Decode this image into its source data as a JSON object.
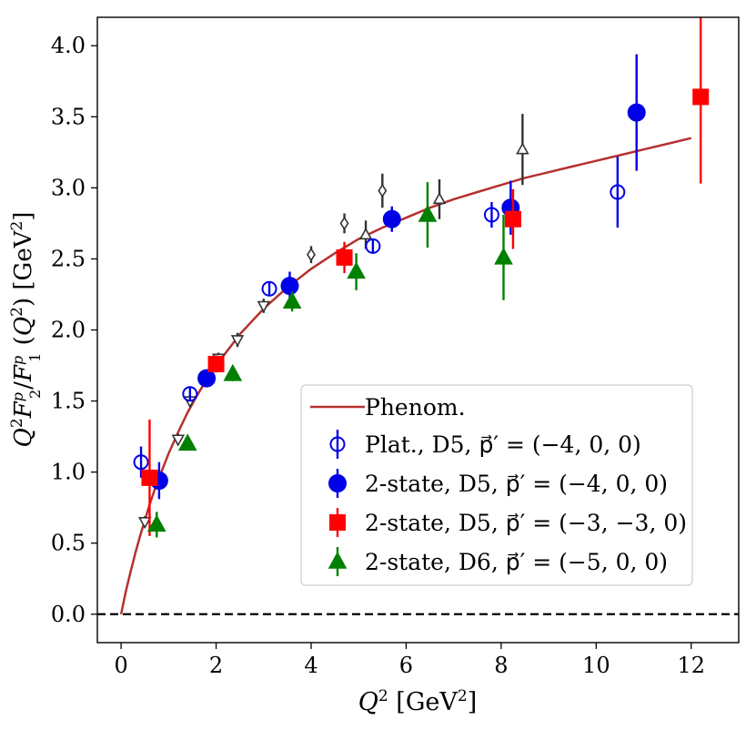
{
  "chart_data": {
    "type": "scatter",
    "xlabel": "Q² [GeV²]",
    "ylabel": "Q²F₂ᵖ/F₁ᵖ (Q²) [GeV²]",
    "xlim": [
      -0.5,
      13.0
    ],
    "ylim": [
      -0.2,
      4.2
    ],
    "xticks": [
      0,
      2,
      4,
      6,
      8,
      10,
      12
    ],
    "yticks": [
      0.0,
      0.5,
      1.0,
      1.5,
      2.0,
      2.5,
      3.0,
      3.5,
      4.0
    ],
    "xtick_labels": [
      "0",
      "2",
      "4",
      "6",
      "8",
      "10",
      "12"
    ],
    "ytick_labels": [
      "0.0",
      "0.5",
      "1.0",
      "1.5",
      "2.0",
      "2.5",
      "3.0",
      "3.5",
      "4.0"
    ],
    "reference_line_y": 0.0,
    "grid": false,
    "legend_position": "bottom-right",
    "curve": {
      "name": "Phenom.",
      "color": "#b5312f",
      "points": [
        [
          0.0,
          0.0
        ],
        [
          0.1,
          0.16
        ],
        [
          0.2,
          0.3
        ],
        [
          0.3,
          0.43
        ],
        [
          0.4,
          0.55
        ],
        [
          0.5,
          0.66
        ],
        [
          0.6,
          0.77
        ],
        [
          0.7,
          0.87
        ],
        [
          0.8,
          0.96
        ],
        [
          1.0,
          1.13
        ],
        [
          1.2,
          1.28
        ],
        [
          1.4,
          1.42
        ],
        [
          1.6,
          1.54
        ],
        [
          1.8,
          1.65
        ],
        [
          2.0,
          1.75
        ],
        [
          2.5,
          1.97
        ],
        [
          3.0,
          2.15
        ],
        [
          3.5,
          2.3
        ],
        [
          4.0,
          2.43
        ],
        [
          4.5,
          2.54
        ],
        [
          5.0,
          2.64
        ],
        [
          5.5,
          2.72
        ],
        [
          6.0,
          2.79
        ],
        [
          6.5,
          2.86
        ],
        [
          7.0,
          2.92
        ],
        [
          7.5,
          2.97
        ],
        [
          8.0,
          3.02
        ],
        [
          8.5,
          3.07
        ],
        [
          9.0,
          3.11
        ],
        [
          9.5,
          3.15
        ],
        [
          10.0,
          3.19
        ],
        [
          10.5,
          3.23
        ],
        [
          11.0,
          3.27
        ],
        [
          11.5,
          3.31
        ],
        [
          12.0,
          3.35
        ]
      ]
    },
    "background_series": [
      {
        "marker": "triangle-down-open",
        "color": "#333333",
        "points": [
          {
            "x": 0.5,
            "y": 0.65,
            "err": 0.04
          },
          {
            "x": 1.2,
            "y": 1.23,
            "err": 0.04
          },
          {
            "x": 1.45,
            "y": 1.5,
            "err": 0.04
          },
          {
            "x": 2.05,
            "y": 1.8,
            "err": 0.04
          },
          {
            "x": 2.45,
            "y": 1.93,
            "err": 0.05
          },
          {
            "x": 3.0,
            "y": 2.17,
            "err": 0.05
          }
        ]
      },
      {
        "marker": "diamond-open",
        "color": "#333333",
        "points": [
          {
            "x": 4.0,
            "y": 2.53,
            "err": 0.06
          },
          {
            "x": 4.7,
            "y": 2.75,
            "err": 0.07
          },
          {
            "x": 5.5,
            "y": 2.98,
            "err": 0.12
          }
        ]
      },
      {
        "marker": "triangle-up-open",
        "color": "#333333",
        "points": [
          {
            "x": 5.15,
            "y": 2.67,
            "err": 0.1
          },
          {
            "x": 6.7,
            "y": 2.92,
            "err": 0.14
          },
          {
            "x": 8.45,
            "y": 3.27,
            "err": 0.25
          }
        ]
      }
    ],
    "series": [
      {
        "name": "Plat., D5, p⃗′ = (−4, 0, 0)",
        "marker": "circle-open",
        "color": "#0000e6",
        "points": [
          {
            "x": 0.42,
            "y": 1.07,
            "err": 0.11
          },
          {
            "x": 1.45,
            "y": 1.55,
            "err": 0.05
          },
          {
            "x": 3.12,
            "y": 2.29,
            "err": 0.05
          },
          {
            "x": 5.3,
            "y": 2.59,
            "err": 0.05
          },
          {
            "x": 7.8,
            "y": 2.81,
            "err": 0.09
          },
          {
            "x": 10.45,
            "y": 2.97,
            "err": 0.25
          }
        ]
      },
      {
        "name": "2-state, D5, p⃗′ = (−4, 0, 0)",
        "marker": "circle",
        "color": "#0000e6",
        "points": [
          {
            "x": 0.8,
            "y": 0.94,
            "err": 0.13
          },
          {
            "x": 1.8,
            "y": 1.66,
            "err": 0.06
          },
          {
            "x": 3.55,
            "y": 2.31,
            "err": 0.1
          },
          {
            "x": 5.7,
            "y": 2.78,
            "err": 0.09
          },
          {
            "x": 8.2,
            "y": 2.86,
            "err": 0.19
          },
          {
            "x": 10.85,
            "y": 3.53,
            "err": 0.41
          }
        ]
      },
      {
        "name": "2-state, D5, p⃗′ = (−3, −3, 0)",
        "marker": "square",
        "color": "#ff0000",
        "points": [
          {
            "x": 0.6,
            "y": 0.96,
            "err": 0.41
          },
          {
            "x": 2.0,
            "y": 1.76,
            "err": 0.06
          },
          {
            "x": 4.7,
            "y": 2.51,
            "err": 0.11
          },
          {
            "x": 8.25,
            "y": 2.78,
            "err": 0.21
          },
          {
            "x": 12.2,
            "y": 3.64,
            "err": 0.61
          }
        ]
      },
      {
        "name": "2-state, D6, p⃗′ = (−5, 0, 0)",
        "marker": "triangle-up",
        "color": "#008000",
        "points": [
          {
            "x": 0.75,
            "y": 0.63,
            "err": 0.09
          },
          {
            "x": 1.4,
            "y": 1.2,
            "err": 0.04
          },
          {
            "x": 2.35,
            "y": 1.69,
            "err": 0.05
          },
          {
            "x": 3.6,
            "y": 2.2,
            "err": 0.07
          },
          {
            "x": 4.95,
            "y": 2.41,
            "err": 0.13
          },
          {
            "x": 6.45,
            "y": 2.81,
            "err": 0.23
          },
          {
            "x": 8.05,
            "y": 2.51,
            "err": 0.3
          }
        ]
      }
    ]
  }
}
